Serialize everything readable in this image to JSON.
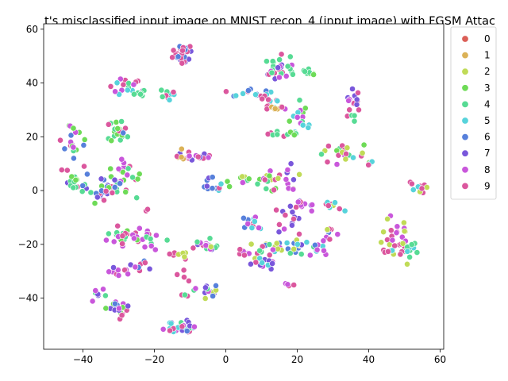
{
  "chart_data": {
    "type": "scatter",
    "title": "t's misclassified input image on MNIST recon_4 (input image) with FGSM Attac",
    "xlabel": "",
    "ylabel": "",
    "xlim": [
      -51,
      61
    ],
    "ylim": [
      -59,
      62
    ],
    "xticks": [
      -40,
      -20,
      0,
      20,
      40,
      60
    ],
    "yticks": [
      -40,
      -20,
      0,
      20,
      40,
      60
    ],
    "tick_labels_x": [
      "−40",
      "−20",
      "0",
      "20",
      "40",
      "60"
    ],
    "tick_labels_y": [
      "−40",
      "−20",
      "0",
      "20",
      "40",
      "60"
    ],
    "grid": false,
    "legend_position": "outside-right-top",
    "classes": [
      {
        "label": "0",
        "color": "#db5f57"
      },
      {
        "label": "1",
        "color": "#dbb257"
      },
      {
        "label": "2",
        "color": "#c0db57"
      },
      {
        "label": "3",
        "color": "#6edb57"
      },
      {
        "label": "4",
        "color": "#57db94"
      },
      {
        "label": "5",
        "color": "#57d3db"
      },
      {
        "label": "6",
        "color": "#5780db"
      },
      {
        "label": "7",
        "color": "#7957db"
      },
      {
        "label": "8",
        "color": "#c957db"
      },
      {
        "label": "9",
        "color": "#db579e"
      }
    ],
    "clusters": [
      {
        "cx": -12,
        "cy": 51,
        "sx": 1.6,
        "sy": 2.0,
        "n": 30,
        "classes": [
          6,
          9,
          7
        ]
      },
      {
        "cx": 15,
        "cy": 46,
        "sx": 2.4,
        "sy": 2.6,
        "n": 32,
        "classes": [
          8,
          9,
          7,
          4
        ]
      },
      {
        "cx": 22,
        "cy": 44,
        "sx": 1.2,
        "sy": 1.0,
        "n": 8,
        "classes": [
          3,
          4
        ]
      },
      {
        "cx": -28,
        "cy": 38,
        "sx": 2.0,
        "sy": 1.8,
        "n": 16,
        "classes": [
          4,
          5,
          8,
          9
        ]
      },
      {
        "cx": -24,
        "cy": 36,
        "sx": 1.0,
        "sy": 0.8,
        "n": 6,
        "classes": [
          4
        ]
      },
      {
        "cx": -16,
        "cy": 36,
        "sx": 1.2,
        "sy": 1.0,
        "n": 9,
        "classes": [
          5,
          4,
          9
        ]
      },
      {
        "cx": 7,
        "cy": 36,
        "sx": 3.8,
        "sy": 0.8,
        "n": 14,
        "classes": [
          5,
          6,
          9
        ]
      },
      {
        "cx": 12,
        "cy": 33,
        "sx": 2.0,
        "sy": 1.4,
        "n": 10,
        "classes": [
          5,
          9
        ]
      },
      {
        "cx": 15,
        "cy": 31,
        "sx": 1.6,
        "sy": 0.8,
        "n": 8,
        "classes": [
          8,
          9,
          1
        ]
      },
      {
        "cx": 36,
        "cy": 34,
        "sx": 1.6,
        "sy": 2.6,
        "n": 14,
        "classes": [
          9,
          8,
          7
        ]
      },
      {
        "cx": 21,
        "cy": 26,
        "sx": 1.6,
        "sy": 2.0,
        "n": 16,
        "classes": [
          3,
          4,
          8,
          5
        ]
      },
      {
        "cx": 36,
        "cy": 27,
        "sx": 0.4,
        "sy": 0.8,
        "n": 3,
        "classes": [
          4
        ]
      },
      {
        "cx": -30,
        "cy": 21,
        "sx": 1.4,
        "sy": 2.4,
        "n": 22,
        "classes": [
          4,
          6,
          9,
          3
        ]
      },
      {
        "cx": -42,
        "cy": 18,
        "sx": 1.5,
        "sy": 3.0,
        "n": 18,
        "classes": [
          4,
          3,
          8,
          9,
          6
        ]
      },
      {
        "cx": 13,
        "cy": 21,
        "sx": 1.4,
        "sy": 0.8,
        "n": 6,
        "classes": [
          4,
          8,
          9
        ]
      },
      {
        "cx": 19,
        "cy": 21,
        "sx": 0.8,
        "sy": 0.8,
        "n": 4,
        "classes": [
          3,
          4
        ]
      },
      {
        "cx": 34,
        "cy": 14,
        "sx": 3.0,
        "sy": 2.0,
        "n": 20,
        "classes": [
          3,
          4,
          9,
          8,
          2
        ]
      },
      {
        "cx": 39,
        "cy": 11,
        "sx": 1.0,
        "sy": 1.0,
        "n": 4,
        "classes": [
          9,
          5
        ]
      },
      {
        "cx": -29,
        "cy": 5,
        "sx": 1.8,
        "sy": 3.0,
        "n": 28,
        "classes": [
          3,
          4,
          9,
          8
        ]
      },
      {
        "cx": -34,
        "cy": 1,
        "sx": 2.4,
        "sy": 2.8,
        "n": 26,
        "classes": [
          4,
          3,
          6,
          7,
          9
        ]
      },
      {
        "cx": -42,
        "cy": 3,
        "sx": 2.0,
        "sy": 2.0,
        "n": 18,
        "classes": [
          4,
          3,
          7,
          6,
          9
        ]
      },
      {
        "cx": -45,
        "cy": 7,
        "sx": 0.6,
        "sy": 0.6,
        "n": 2,
        "classes": [
          9
        ]
      },
      {
        "cx": -9,
        "cy": 12,
        "sx": 2.8,
        "sy": 1.2,
        "n": 14,
        "classes": [
          9,
          8,
          7
        ]
      },
      {
        "cx": -14,
        "cy": 13,
        "sx": 1.4,
        "sy": 0.8,
        "n": 6,
        "classes": [
          8,
          9,
          1
        ]
      },
      {
        "cx": -3,
        "cy": 1,
        "sx": 2.0,
        "sy": 1.0,
        "n": 8,
        "classes": [
          5,
          6,
          9
        ]
      },
      {
        "cx": -5,
        "cy": 4,
        "sx": 1.0,
        "sy": 1.0,
        "n": 4,
        "classes": [
          7,
          6
        ]
      },
      {
        "cx": 6,
        "cy": 4,
        "sx": 2.2,
        "sy": 1.0,
        "n": 12,
        "classes": [
          2,
          3,
          4,
          8,
          6
        ]
      },
      {
        "cx": 13,
        "cy": 4,
        "sx": 1.4,
        "sy": 3.2,
        "n": 16,
        "classes": [
          3,
          4,
          8,
          9,
          2
        ]
      },
      {
        "cx": 19,
        "cy": 4,
        "sx": 1.2,
        "sy": 2.4,
        "n": 10,
        "classes": [
          4,
          2,
          8,
          7
        ]
      },
      {
        "cx": 54,
        "cy": 1,
        "sx": 1.2,
        "sy": 0.8,
        "n": 10,
        "classes": [
          4,
          5,
          9,
          2
        ]
      },
      {
        "cx": 52,
        "cy": 3,
        "sx": 0.5,
        "sy": 0.5,
        "n": 3,
        "classes": [
          9
        ]
      },
      {
        "cx": 21,
        "cy": -6,
        "sx": 2.2,
        "sy": 1.2,
        "n": 12,
        "classes": [
          8,
          7,
          9
        ]
      },
      {
        "cx": 30,
        "cy": -6,
        "sx": 1.2,
        "sy": 1.4,
        "n": 10,
        "classes": [
          9,
          6,
          5,
          2
        ]
      },
      {
        "cx": -22,
        "cy": -7,
        "sx": 0.4,
        "sy": 0.4,
        "n": 2,
        "classes": [
          9
        ]
      },
      {
        "cx": 7,
        "cy": -13,
        "sx": 1.2,
        "sy": 2.4,
        "n": 16,
        "classes": [
          6,
          5,
          9,
          8
        ]
      },
      {
        "cx": 17,
        "cy": -11,
        "sx": 1.8,
        "sy": 2.6,
        "n": 12,
        "classes": [
          8,
          9,
          7
        ]
      },
      {
        "cx": -29,
        "cy": -17,
        "sx": 2.0,
        "sy": 2.0,
        "n": 26,
        "classes": [
          4,
          3,
          9,
          8
        ]
      },
      {
        "cx": -21,
        "cy": -18,
        "sx": 1.8,
        "sy": 2.2,
        "n": 12,
        "classes": [
          9,
          4,
          8
        ]
      },
      {
        "cx": -6,
        "cy": -20,
        "sx": 2.0,
        "sy": 1.4,
        "n": 18,
        "classes": [
          8,
          7,
          4,
          9,
          2
        ]
      },
      {
        "cx": 5,
        "cy": -23,
        "sx": 1.4,
        "sy": 1.0,
        "n": 6,
        "classes": [
          9,
          8
        ]
      },
      {
        "cx": 13,
        "cy": -21,
        "sx": 2.8,
        "sy": 2.0,
        "n": 22,
        "classes": [
          5,
          8,
          9,
          6,
          4,
          2
        ]
      },
      {
        "cx": 20,
        "cy": -21,
        "sx": 1.6,
        "sy": 1.4,
        "n": 14,
        "classes": [
          6,
          7,
          5,
          4,
          2
        ]
      },
      {
        "cx": 25,
        "cy": -21,
        "sx": 1.6,
        "sy": 1.4,
        "n": 10,
        "classes": [
          5,
          4,
          6,
          8
        ]
      },
      {
        "cx": 29,
        "cy": -16,
        "sx": 1.0,
        "sy": 1.6,
        "n": 10,
        "classes": [
          9,
          8,
          6,
          2
        ]
      },
      {
        "cx": 48,
        "cy": -17,
        "sx": 2.0,
        "sy": 3.5,
        "n": 26,
        "classes": [
          8,
          9,
          2
        ]
      },
      {
        "cx": 52,
        "cy": -22,
        "sx": 1.4,
        "sy": 1.0,
        "n": 12,
        "classes": [
          5,
          4
        ]
      },
      {
        "cx": 46,
        "cy": -23,
        "sx": 1.6,
        "sy": 0.8,
        "n": 6,
        "classes": [
          5,
          9
        ]
      },
      {
        "cx": 10,
        "cy": -28,
        "sx": 2.0,
        "sy": 1.2,
        "n": 12,
        "classes": [
          5,
          7,
          9,
          8
        ]
      },
      {
        "cx": -14,
        "cy": -24,
        "sx": 1.8,
        "sy": 0.8,
        "n": 8,
        "classes": [
          9,
          8,
          2
        ]
      },
      {
        "cx": -24,
        "cy": -28,
        "sx": 1.4,
        "sy": 1.4,
        "n": 8,
        "classes": [
          6,
          8,
          7,
          9
        ]
      },
      {
        "cx": -30,
        "cy": -30,
        "sx": 1.8,
        "sy": 0.8,
        "n": 10,
        "classes": [
          6,
          8,
          7,
          9
        ]
      },
      {
        "cx": -12,
        "cy": -32,
        "sx": 1.0,
        "sy": 1.4,
        "n": 4,
        "classes": [
          9
        ]
      },
      {
        "cx": -36,
        "cy": -38,
        "sx": 1.2,
        "sy": 1.6,
        "n": 8,
        "classes": [
          8,
          7,
          4
        ]
      },
      {
        "cx": -5,
        "cy": -37,
        "sx": 1.6,
        "sy": 1.4,
        "n": 14,
        "classes": [
          8,
          7,
          6,
          4,
          2
        ]
      },
      {
        "cx": -11,
        "cy": -39,
        "sx": 0.8,
        "sy": 0.8,
        "n": 3,
        "classes": [
          9,
          4
        ]
      },
      {
        "cx": 18,
        "cy": -35,
        "sx": 1.0,
        "sy": 0.6,
        "n": 5,
        "classes": [
          9,
          8
        ]
      },
      {
        "cx": -30,
        "cy": -44,
        "sx": 1.6,
        "sy": 1.8,
        "n": 18,
        "classes": [
          9,
          8,
          7,
          6,
          3
        ]
      },
      {
        "cx": -13,
        "cy": -51,
        "sx": 2.6,
        "sy": 1.2,
        "n": 32,
        "classes": [
          6,
          7,
          8,
          9,
          4,
          5
        ]
      }
    ]
  }
}
